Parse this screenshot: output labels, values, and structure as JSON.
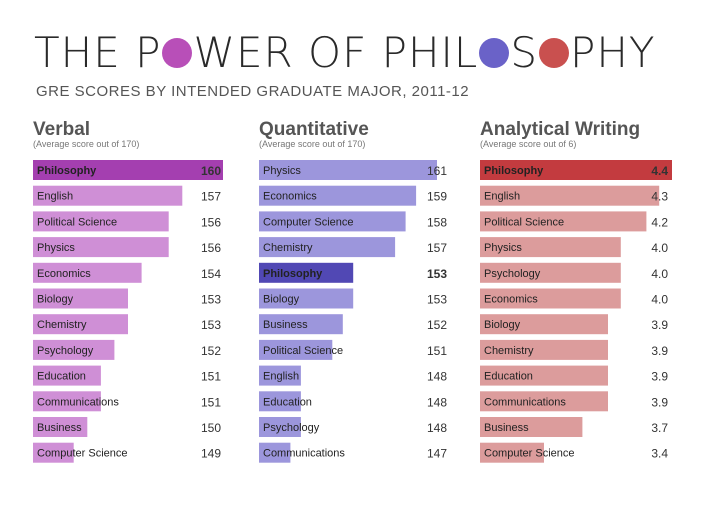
{
  "title": {
    "part1": "THE P",
    "part2": "WER OF PHIL",
    "part3": "S",
    "part4": "PHY"
  },
  "subtitle": "GRE SCORES BY INTENDED GRADUATE MAJOR, 2011-12",
  "colors": {
    "o1": "#b84fb8",
    "o2": "#6a62c8",
    "o3": "#c9504f",
    "verbal_bar": "#cf8fd6",
    "verbal_highlight": "#a43fb0",
    "quant_bar": "#9c96dc",
    "quant_highlight": "#5148b4",
    "writing_bar": "#dc9c9c",
    "writing_highlight": "#c33b3f"
  },
  "chart_data": [
    {
      "type": "bar",
      "title": "Verbal",
      "subtitle": "(Average score out of 170)",
      "categories": [
        "Philosophy",
        "English",
        "Political Science",
        "Physics",
        "Economics",
        "Biology",
        "Chemistry",
        "Psychology",
        "Education",
        "Communications",
        "Business",
        "Computer Science"
      ],
      "values": [
        160,
        157,
        156,
        156,
        154,
        153,
        153,
        152,
        151,
        151,
        150,
        149
      ],
      "value_labels": [
        "160",
        "157",
        "156",
        "156",
        "154",
        "153",
        "153",
        "152",
        "151",
        "151",
        "150",
        "149"
      ],
      "highlight": "Philosophy"
    },
    {
      "type": "bar",
      "title": "Quantitative",
      "subtitle": "(Average score out of 170)",
      "categories": [
        "Physics",
        "Economics",
        "Computer Science",
        "Chemistry",
        "Philosophy",
        "Biology",
        "Business",
        "Political Science",
        "English",
        "Education",
        "Psychology",
        "Communications"
      ],
      "values": [
        161,
        159,
        158,
        157,
        153,
        153,
        152,
        151,
        148,
        148,
        148,
        147
      ],
      "value_labels": [
        "161",
        "159",
        "158",
        "157",
        "153",
        "153",
        "152",
        "151",
        "148",
        "148",
        "148",
        "147"
      ],
      "highlight": "Philosophy"
    },
    {
      "type": "bar",
      "title": "Analytical Writing",
      "subtitle": "(Average score out of 6)",
      "categories": [
        "Philosophy",
        "English",
        "Political Science",
        "Physics",
        "Psychology",
        "Economics",
        "Biology",
        "Chemistry",
        "Education",
        "Communications",
        "Business",
        "Computer Science"
      ],
      "values": [
        4.4,
        4.3,
        4.2,
        4.0,
        4.0,
        4.0,
        3.9,
        3.9,
        3.9,
        3.9,
        3.7,
        3.4
      ],
      "value_labels": [
        "4.4",
        "4.3",
        "4.2",
        "4.0",
        "4.0",
        "4.0",
        "3.9",
        "3.9",
        "3.9",
        "3.9",
        "3.7",
        "3.4"
      ],
      "highlight": "Philosophy"
    }
  ]
}
